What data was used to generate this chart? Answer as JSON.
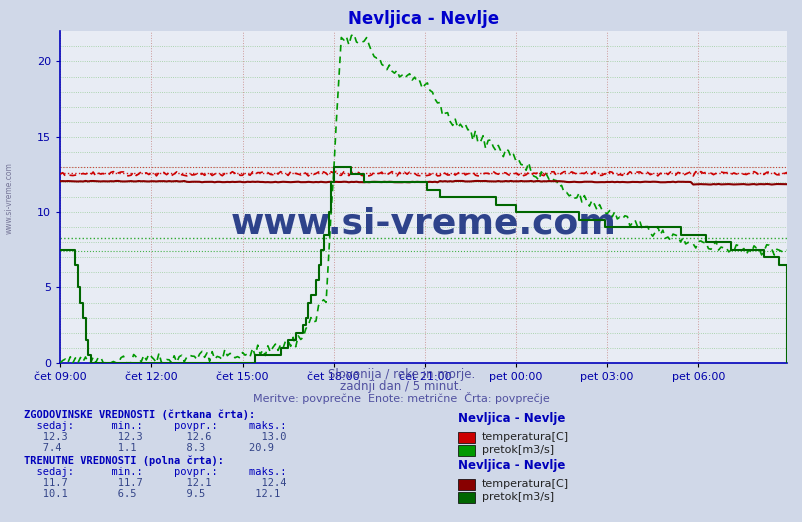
{
  "title": "Nevljica - Nevlje",
  "title_color": "#0000cc",
  "bg_color": "#d0d8e8",
  "plot_bg_color": "#e8ecf4",
  "xlim_min": 0,
  "xlim_max": 287,
  "ylim_min": 0,
  "ylim_max": 22,
  "ytick_vals": [
    0,
    5,
    10,
    15,
    20
  ],
  "xtick_labels": [
    "čet 09:00",
    "čet 12:00",
    "čet 15:00",
    "čet 18:00",
    "čet 21:00",
    "pet 00:00",
    "pet 03:00",
    "pet 06:00"
  ],
  "xtick_positions": [
    0,
    36,
    72,
    108,
    144,
    180,
    216,
    252
  ],
  "subtitle1": "Slovenija / reke in morje.",
  "subtitle2": "zadnji dan / 5 minut.",
  "subtitle3": "Meritve: povprečne  Enote: metrične  Črta: povprečje",
  "subtitle_color": "#5050a0",
  "watermark": "www.si-vreme.com",
  "watermark_color": "#1a3080",
  "temp_hist_sedaj": 12.3,
  "temp_hist_min": 12.3,
  "temp_hist_avg": 12.6,
  "temp_hist_max": 13.0,
  "flow_hist_sedaj": 7.4,
  "flow_hist_min": 1.1,
  "flow_hist_avg": 8.3,
  "flow_hist_max": 20.9,
  "temp_curr_sedaj": 11.7,
  "temp_curr_min": 11.7,
  "temp_curr_avg": 12.1,
  "temp_curr_max": 12.4,
  "flow_curr_sedaj": 10.1,
  "flow_curr_min": 6.5,
  "flow_curr_avg": 9.5,
  "flow_curr_max": 12.1,
  "temp_hist_color": "#cc0000",
  "flow_hist_color": "#009900",
  "temp_curr_color": "#880000",
  "flow_curr_color": "#006600",
  "axis_color": "#0000bb",
  "tick_color": "#0000aa",
  "grid_v_color": "#cc9999",
  "grid_h_color": "#99cc99",
  "N": 288
}
